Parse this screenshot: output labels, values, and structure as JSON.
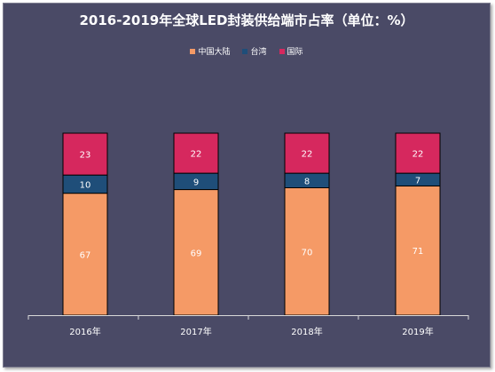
{
  "chart_data": {
    "type": "bar",
    "stacked": true,
    "title": "2016-2019年全球LED封装供给端市占率（单位：%）",
    "categories": [
      "2016年",
      "2017年",
      "2018年",
      "2019年"
    ],
    "series": [
      {
        "name": "中国大陆",
        "values": [
          67,
          69,
          70,
          71
        ],
        "color": "#f59a66"
      },
      {
        "name": "台湾",
        "values": [
          10,
          9,
          8,
          7
        ],
        "color": "#1f4e79"
      },
      {
        "name": "国际",
        "values": [
          23,
          22,
          22,
          22
        ],
        "color": "#d6285e"
      }
    ],
    "ylim": [
      0,
      100
    ],
    "legend_position": "top-center",
    "grid": false
  },
  "colors": {
    "background": "#4a4a66",
    "text": "#ffffff",
    "bar_outline": "#000000",
    "axis": "#d9d9d9"
  }
}
